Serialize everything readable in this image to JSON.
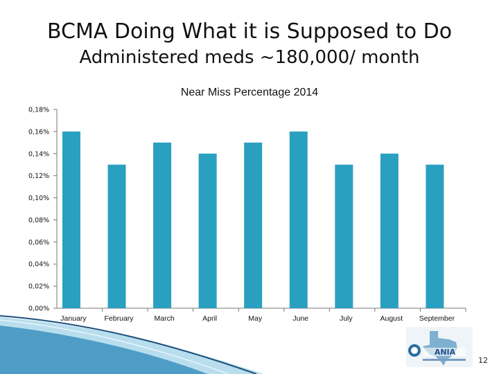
{
  "slide": {
    "title": "BCMA Doing What it is Supposed to Do",
    "subtitle": "Administered meds ~180,000/ month",
    "page_number": "12"
  },
  "colors": {
    "bar": "#2aa0c0",
    "accent_dark": "#1a6e95",
    "accent_light": "#7ec3e0"
  },
  "logo": {
    "icon": "texas-state-logo-icon",
    "text": "ANIA"
  },
  "chart_data": {
    "type": "bar",
    "title": "Near Miss Percentage 2014",
    "categories": [
      "January",
      "February",
      "March",
      "April",
      "May",
      "June",
      "July",
      "August",
      "September"
    ],
    "values": [
      0.16,
      0.13,
      0.15,
      0.14,
      0.15,
      0.16,
      0.13,
      0.14,
      0.13
    ],
    "yticks": [
      "0,00%",
      "0,02%",
      "0,04%",
      "0,06%",
      "0,08%",
      "0,10%",
      "0,12%",
      "0,14%",
      "0,16%",
      "0,18%"
    ],
    "ylim": [
      0,
      0.18
    ],
    "ytick_step": 0.02,
    "unit": "%",
    "grid": false,
    "xlabel": "",
    "ylabel": ""
  }
}
